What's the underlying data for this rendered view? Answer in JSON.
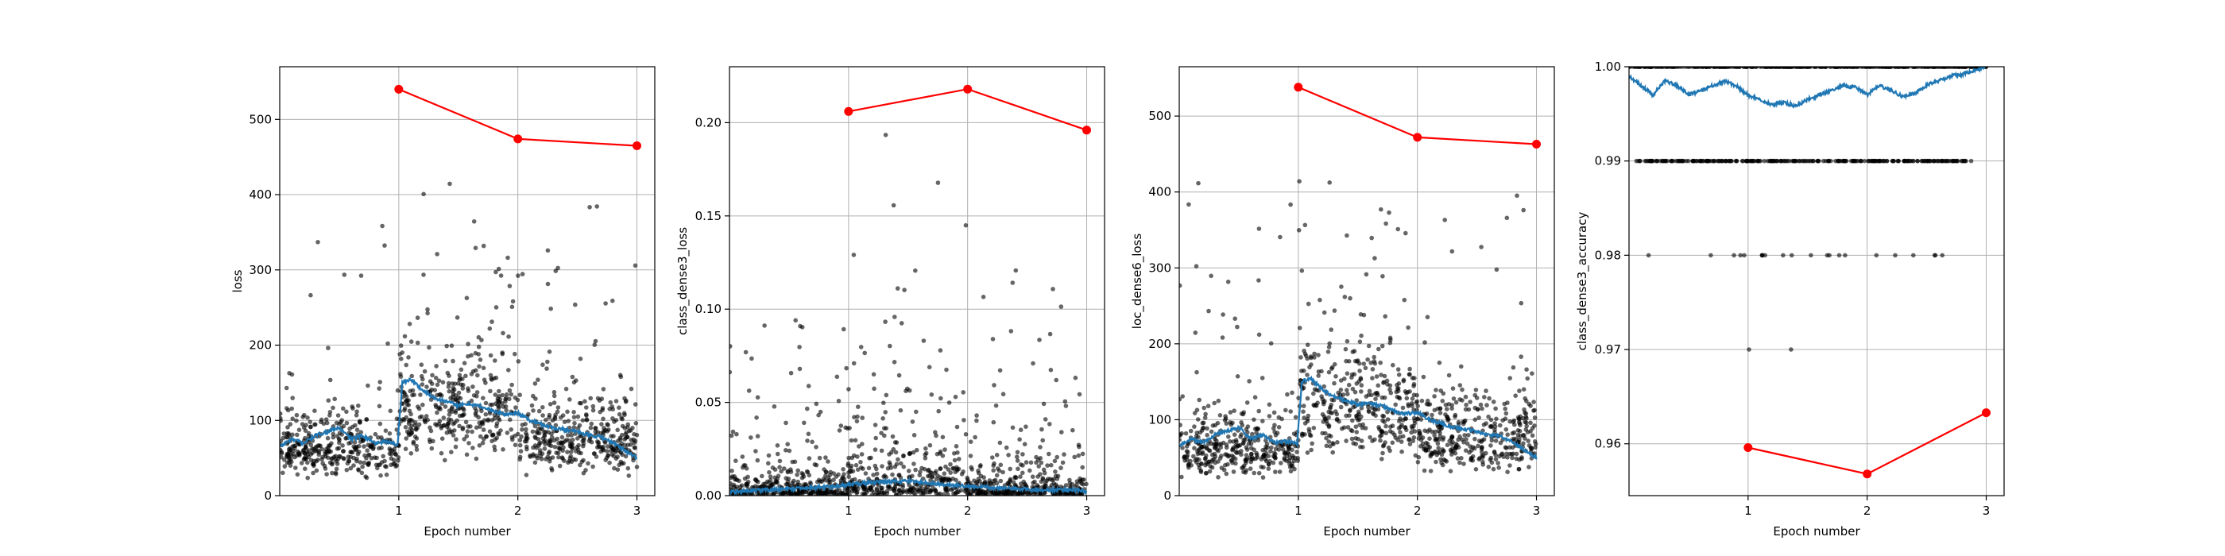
{
  "colors": {
    "scatter": "#000000",
    "running_mean": "#1f77b4",
    "epoch_values": "#ff0000",
    "grid": "#b0b0b0"
  },
  "chart_data": [
    {
      "type": "scatter",
      "xlabel": "Epoch number",
      "ylabel": "loss",
      "xlim": [
        0,
        3.15
      ],
      "ylim": [
        0,
        570
      ],
      "x_ticks": [
        1,
        2,
        3
      ],
      "y_ticks": [
        0,
        100,
        200,
        300,
        400,
        500
      ],
      "y_tick_labels": [
        "0",
        "100",
        "200",
        "300",
        "400",
        "500"
      ],
      "grid": true,
      "epoch_points": {
        "x": [
          1,
          2,
          3
        ],
        "y": [
          540,
          474,
          465
        ]
      },
      "running_mean_profile": {
        "x": [
          0,
          0.1,
          0.2,
          0.3,
          0.4,
          0.5,
          0.6,
          0.7,
          0.8,
          0.9,
          0.99,
          1.03,
          1.1,
          1.2,
          1.3,
          1.4,
          1.5,
          1.6,
          1.7,
          1.8,
          1.9,
          2.0,
          2.1,
          2.2,
          2.3,
          2.4,
          2.5,
          2.6,
          2.7,
          2.8,
          2.9,
          3.0
        ],
        "y": [
          65,
          75,
          70,
          80,
          85,
          90,
          75,
          80,
          70,
          72,
          68,
          150,
          155,
          140,
          130,
          125,
          120,
          122,
          118,
          112,
          108,
          110,
          100,
          95,
          90,
          88,
          85,
          80,
          78,
          70,
          60,
          50
        ]
      },
      "scatter_model": {
        "segments": [
          [
            0,
            1,
            62
          ],
          [
            1,
            2,
            118
          ],
          [
            2,
            3,
            78
          ]
        ],
        "spread": 0.35,
        "count_per_epoch": 380,
        "outlier_max": 420
      }
    },
    {
      "type": "scatter",
      "xlabel": "Epoch number",
      "ylabel": "class_dense3_loss",
      "xlim": [
        0,
        3.15
      ],
      "ylim": [
        0,
        0.23
      ],
      "x_ticks": [
        1,
        2,
        3
      ],
      "y_ticks": [
        0,
        0.05,
        0.1,
        0.15,
        0.2
      ],
      "y_tick_labels": [
        "0.00",
        "0.05",
        "0.10",
        "0.15",
        "0.20"
      ],
      "grid": true,
      "epoch_points": {
        "x": [
          1,
          2,
          3
        ],
        "y": [
          0.206,
          0.218,
          0.196
        ]
      },
      "running_mean_profile": {
        "x": [
          0,
          0.3,
          0.6,
          0.9,
          1.0,
          1.2,
          1.5,
          1.8,
          2.0,
          2.3,
          2.6,
          2.9,
          3.0
        ],
        "y": [
          0.002,
          0.003,
          0.004,
          0.005,
          0.006,
          0.007,
          0.008,
          0.006,
          0.005,
          0.004,
          0.003,
          0.003,
          0.002
        ]
      },
      "scatter_model": {
        "segments": [
          [
            0,
            1,
            0.004
          ],
          [
            1,
            2,
            0.008
          ],
          [
            2,
            3,
            0.004
          ]
        ],
        "spread": 1.2,
        "count_per_epoch": 380,
        "outlier_max": 0.115
      }
    },
    {
      "type": "scatter",
      "xlabel": "Epoch number",
      "ylabel": "loc_dense6_loss",
      "xlim": [
        0,
        3.15
      ],
      "ylim": [
        0,
        565
      ],
      "x_ticks": [
        1,
        2,
        3
      ],
      "y_ticks": [
        0,
        100,
        200,
        300,
        400,
        500
      ],
      "y_tick_labels": [
        "0",
        "100",
        "200",
        "300",
        "400",
        "500"
      ],
      "grid": true,
      "epoch_points": {
        "x": [
          1,
          2,
          3
        ],
        "y": [
          538,
          472,
          463
        ]
      },
      "running_mean_profile": {
        "x": [
          0,
          0.1,
          0.2,
          0.3,
          0.4,
          0.5,
          0.6,
          0.7,
          0.8,
          0.9,
          0.99,
          1.03,
          1.1,
          1.2,
          1.3,
          1.4,
          1.5,
          1.6,
          1.7,
          1.8,
          1.9,
          2.0,
          2.1,
          2.2,
          2.3,
          2.4,
          2.5,
          2.6,
          2.7,
          2.8,
          2.9,
          3.0
        ],
        "y": [
          65,
          75,
          70,
          80,
          85,
          90,
          75,
          80,
          70,
          72,
          68,
          150,
          155,
          140,
          130,
          125,
          120,
          122,
          118,
          112,
          108,
          110,
          100,
          95,
          90,
          88,
          85,
          80,
          78,
          70,
          60,
          50
        ]
      },
      "scatter_model": {
        "segments": [
          [
            0,
            1,
            62
          ],
          [
            1,
            2,
            118
          ],
          [
            2,
            3,
            78
          ]
        ],
        "spread": 0.35,
        "count_per_epoch": 380,
        "outlier_max": 420
      }
    },
    {
      "type": "scatter",
      "xlabel": "Epoch number",
      "ylabel": "class_dense3_accuracy",
      "xlim": [
        0,
        3.15
      ],
      "ylim": [
        0.9545,
        1.0
      ],
      "x_ticks": [
        1,
        2,
        3
      ],
      "y_ticks": [
        0.96,
        0.97,
        0.98,
        0.99,
        1.0
      ],
      "y_tick_labels": [
        "0.96",
        "0.97",
        "0.98",
        "0.99",
        "1.00"
      ],
      "grid": true,
      "epoch_points": {
        "x": [
          1,
          2,
          3
        ],
        "y": [
          0.9596,
          0.9568,
          0.9633
        ]
      },
      "running_mean_profile": {
        "x": [
          0,
          0.1,
          0.2,
          0.3,
          0.4,
          0.5,
          0.6,
          0.7,
          0.8,
          0.9,
          1.0,
          1.1,
          1.2,
          1.3,
          1.4,
          1.5,
          1.6,
          1.7,
          1.8,
          1.9,
          2.0,
          2.1,
          2.2,
          2.3,
          2.4,
          2.5,
          2.6,
          2.7,
          2.8,
          2.9,
          3.0
        ],
        "y": [
          0.999,
          0.998,
          0.997,
          0.9985,
          0.998,
          0.997,
          0.9975,
          0.998,
          0.9985,
          0.998,
          0.997,
          0.9965,
          0.996,
          0.9962,
          0.9958,
          0.9965,
          0.997,
          0.9975,
          0.998,
          0.9978,
          0.997,
          0.998,
          0.9975,
          0.9968,
          0.9972,
          0.998,
          0.9985,
          0.999,
          0.9992,
          0.9996,
          1.0
        ]
      },
      "discrete_levels": [
        {
          "y": 1.0,
          "x_range": [
            0,
            3.0
          ],
          "count": 400
        },
        {
          "y": 0.99,
          "x_range": [
            0.05,
            2.9
          ],
          "count": 260
        },
        {
          "y": 0.98,
          "x_range": [
            0.15,
            2.7
          ],
          "count": 22
        },
        {
          "y": 0.97,
          "x_range": [
            0.85,
            1.45
          ],
          "count": 2
        }
      ]
    }
  ]
}
